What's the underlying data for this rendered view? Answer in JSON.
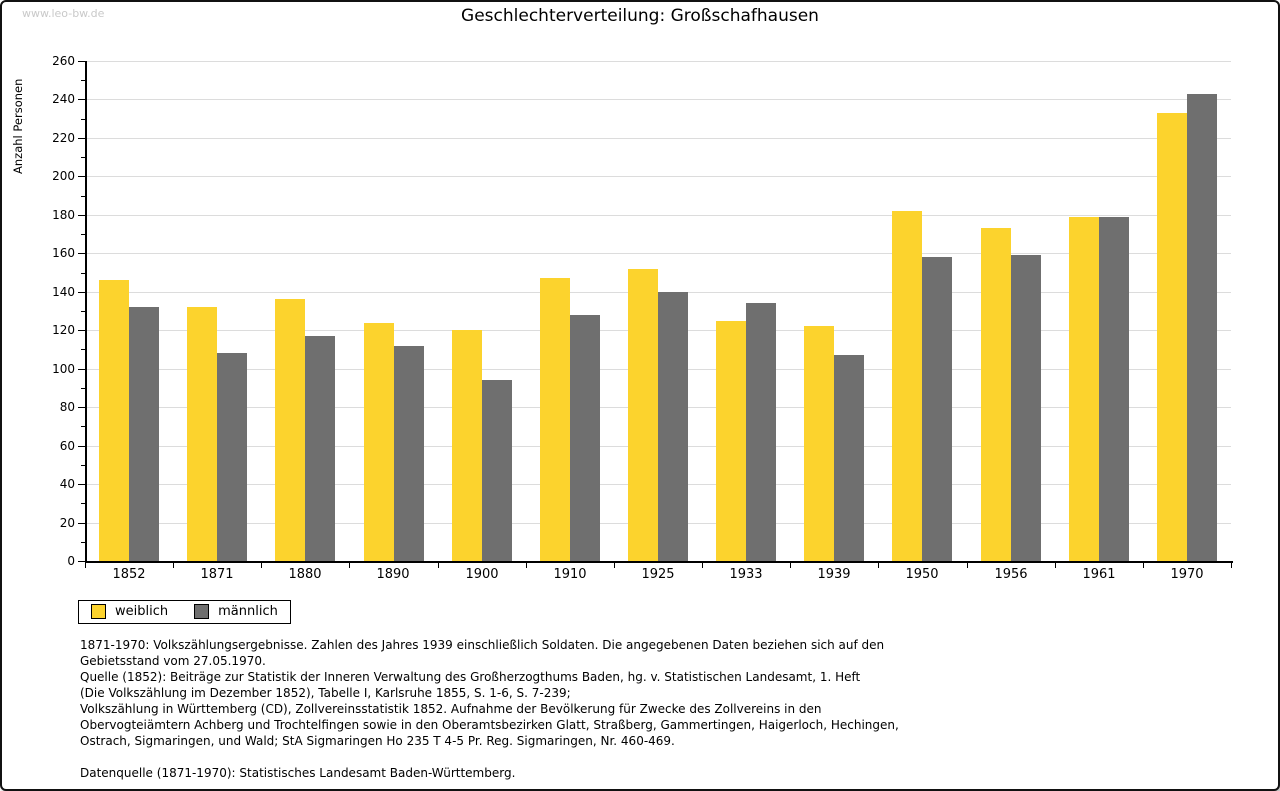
{
  "watermark": "www.leo-bw.de",
  "title": "Geschlechterverteilung: Großschafhausen",
  "colors": {
    "female": "#FCD32D",
    "male": "#6F6F6F",
    "grid": "#DCDCDC",
    "axis": "#000000",
    "watermark": "#C9C9C9"
  },
  "chart_data": {
    "type": "bar",
    "title": "Geschlechterverteilung: Großschafhausen",
    "xlabel": "",
    "ylabel": "Anzahl Personen",
    "categories": [
      "1852",
      "1871",
      "1880",
      "1890",
      "1900",
      "1910",
      "1925",
      "1933",
      "1939",
      "1950",
      "1956",
      "1961",
      "1970"
    ],
    "series": [
      {
        "name": "weiblich",
        "color": "#FCD32D",
        "values": [
          146,
          132,
          136,
          124,
          120,
          147,
          152,
          125,
          122,
          182,
          173,
          179,
          233
        ]
      },
      {
        "name": "männlich",
        "color": "#6F6F6F",
        "values": [
          132,
          108,
          117,
          112,
          94,
          128,
          140,
          134,
          107,
          158,
          159,
          179,
          243
        ]
      }
    ],
    "ylim": [
      0,
      260
    ],
    "ytick_step": 20,
    "ytick_minor_step": 10,
    "grid": true,
    "legend_position": "bottom-left"
  },
  "legend": {
    "items": [
      {
        "label": "weiblich",
        "color": "#FCD32D"
      },
      {
        "label": "männlich",
        "color": "#6F6F6F"
      }
    ]
  },
  "footnotes": {
    "lines": [
      "1871-1970: Volkszählungsergebnisse. Zahlen des Jahres 1939 einschließlich Soldaten. Die angegebenen Daten beziehen sich auf den",
      "Gebietsstand vom 27.05.1970.",
      "Quelle (1852): Beiträge zur Statistik der Inneren Verwaltung des Großherzogthums Baden, hg. v. Statistischen Landesamt, 1. Heft",
      "(Die Volkszählung im Dezember 1852), Tabelle I, Karlsruhe 1855, S. 1-6, S. 7-239;",
      "Volkszählung in Württemberg (CD), Zollvereinsstatistik 1852. Aufnahme der Bevölkerung für Zwecke des Zollvereins in den",
      "Obervogteiämtern Achberg und Trochtelfingen sowie in den Oberamtsbezirken Glatt, Straßberg, Gammertingen, Haigerloch, Hechingen,",
      "Ostrach, Sigmaringen, und Wald; StA Sigmaringen Ho 235 T 4-5 Pr. Reg. Sigmaringen, Nr. 460-469."
    ],
    "datasource": "Datenquelle (1871-1970): Statistisches Landesamt Baden-Württemberg."
  }
}
